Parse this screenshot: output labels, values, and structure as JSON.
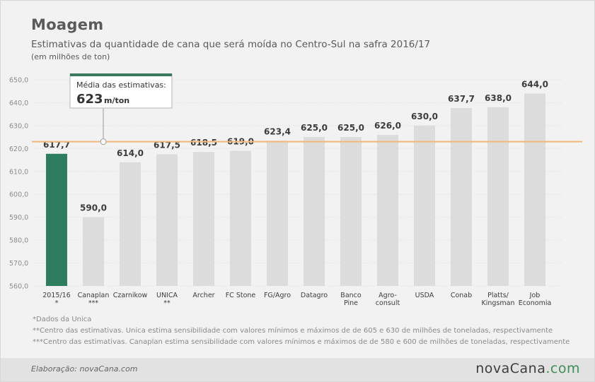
{
  "header": {
    "title": "Moagem",
    "subtitle": "Estimativas da quantidade de cana que será moída no Centro-Sul na safra 2016/17",
    "unit": "(em milhões de ton)"
  },
  "callout": {
    "label": "Média das estimativas:",
    "value": "623",
    "unit": "m/ton"
  },
  "notes": [
    "*Dados da Unica",
    "**Centro das estimativas. Unica estima sensibilidade com valores mínimos e máximos de de 605 e 630 de milhões de toneladas, respectivamente",
    "***Centro das estimativas. Canaplan estima sensibilidade com valores mínimos e máximos de de 580 e 600 de milhões de toneladas, respectivamente"
  ],
  "footer": {
    "credit": "Elaboração: novaCana.com",
    "brand_main": "novaCana",
    "brand_suffix": ".com"
  },
  "colors": {
    "highlight_bar": "#2e7d5f",
    "bar": "#dcdcdc",
    "average_line": "#f4b67a",
    "callout_border": "#3a7a5e"
  },
  "chart_data": {
    "type": "bar",
    "categories": [
      [
        "2015/16",
        "*"
      ],
      [
        "Canaplan",
        "***"
      ],
      [
        "Czarnikow"
      ],
      [
        "UNICA",
        "**"
      ],
      [
        "Archer"
      ],
      [
        "FC Stone"
      ],
      [
        "FG/Agro"
      ],
      [
        "Datagro"
      ],
      [
        "Banco",
        "Pine"
      ],
      [
        "Agro-",
        "consult"
      ],
      [
        "USDA"
      ],
      [
        "Conab"
      ],
      [
        "Platts/",
        "Kingsman"
      ],
      [
        "Job",
        "Economia"
      ]
    ],
    "values": [
      617.7,
      590.0,
      614.0,
      617.5,
      618.5,
      619.0,
      623.4,
      625.0,
      625.0,
      626.0,
      630.0,
      637.7,
      638.0,
      644.0
    ],
    "labels": [
      "617,7",
      "590,0",
      "614,0",
      "617,5",
      "618,5",
      "619,0",
      "623,4",
      "625,0",
      "625,0",
      "626,0",
      "630,0",
      "637,7",
      "638,0",
      "644,0"
    ],
    "highlight_index": 0,
    "ylim": [
      560,
      650
    ],
    "yticks": [
      560,
      570,
      580,
      590,
      600,
      610,
      620,
      630,
      640,
      650
    ],
    "ytick_labels": [
      "560,0",
      "570,0",
      "580,0",
      "590,0",
      "600,0",
      "610,0",
      "620,0",
      "630,0",
      "640,0",
      "650,0"
    ],
    "average": 623,
    "grid": true
  }
}
